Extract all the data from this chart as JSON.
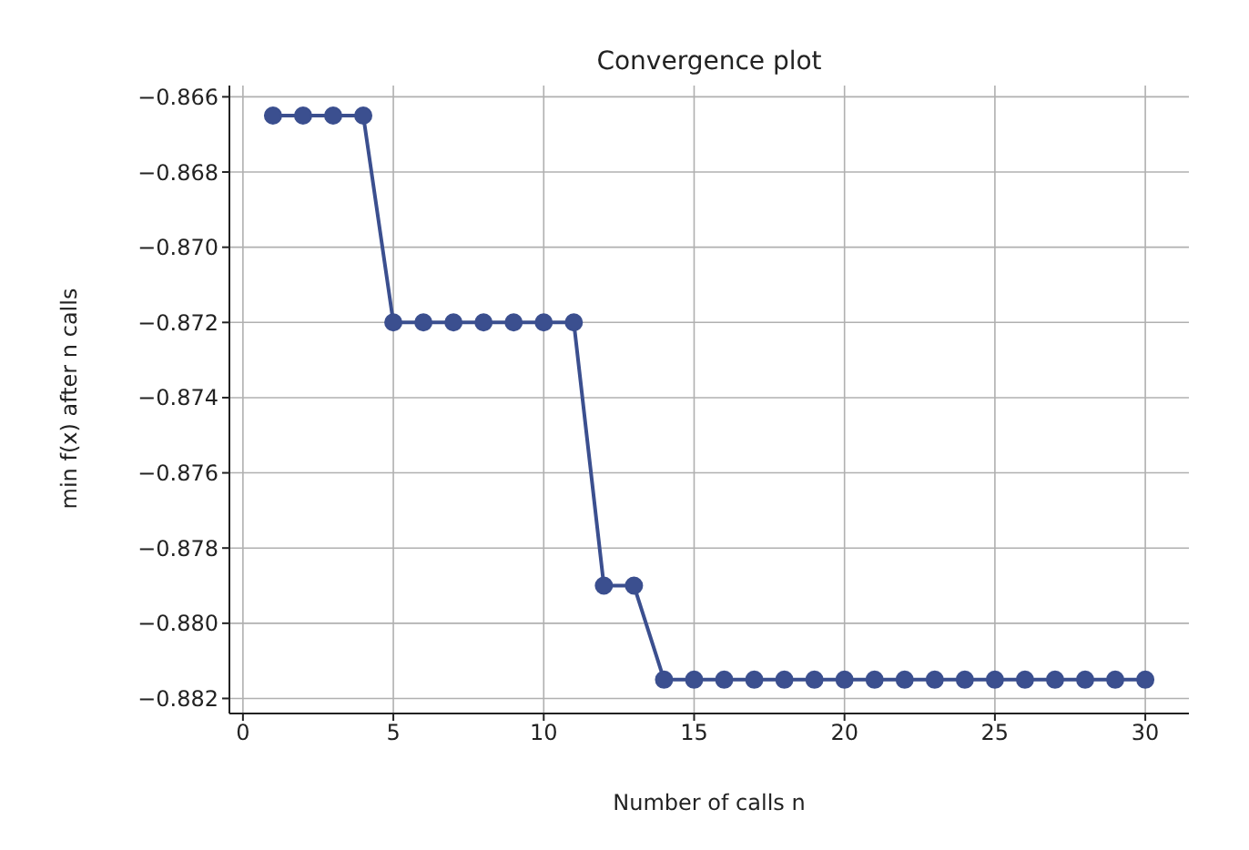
{
  "chart_data": {
    "type": "line",
    "title": "Convergence plot",
    "xlabel": "Number of calls n",
    "ylabel": "min f(x) after n calls",
    "x": [
      1,
      2,
      3,
      4,
      5,
      6,
      7,
      8,
      9,
      10,
      11,
      12,
      13,
      14,
      15,
      16,
      17,
      18,
      19,
      20,
      21,
      22,
      23,
      24,
      25,
      26,
      27,
      28,
      29,
      30
    ],
    "series": [
      {
        "color": "#3b4f8f",
        "values": [
          -0.8665,
          -0.8665,
          -0.8665,
          -0.8665,
          -0.872,
          -0.872,
          -0.872,
          -0.872,
          -0.872,
          -0.872,
          -0.872,
          -0.879,
          -0.879,
          -0.8815,
          -0.8815,
          -0.8815,
          -0.8815,
          -0.8815,
          -0.8815,
          -0.8815,
          -0.8815,
          -0.8815,
          -0.8815,
          -0.8815,
          -0.8815,
          -0.8815,
          -0.8815,
          -0.8815,
          -0.8815,
          -0.8815
        ]
      }
    ],
    "xlim": [
      -0.45,
      31.45
    ],
    "xticks": [
      0,
      5,
      10,
      15,
      20,
      25,
      30
    ],
    "ylim": [
      -0.8824,
      -0.8657
    ],
    "yticks": [
      {
        "value": -0.882,
        "label": "−0.882"
      },
      {
        "value": -0.88,
        "label": "−0.880"
      },
      {
        "value": -0.878,
        "label": "−0.878"
      },
      {
        "value": -0.876,
        "label": "−0.876"
      },
      {
        "value": -0.874,
        "label": "−0.874"
      },
      {
        "value": -0.872,
        "label": "−0.872"
      },
      {
        "value": -0.87,
        "label": "−0.870"
      },
      {
        "value": -0.868,
        "label": "−0.868"
      },
      {
        "value": -0.866,
        "label": "−0.866"
      }
    ],
    "grid": true,
    "marker": "circle",
    "line_style": "solid"
  }
}
